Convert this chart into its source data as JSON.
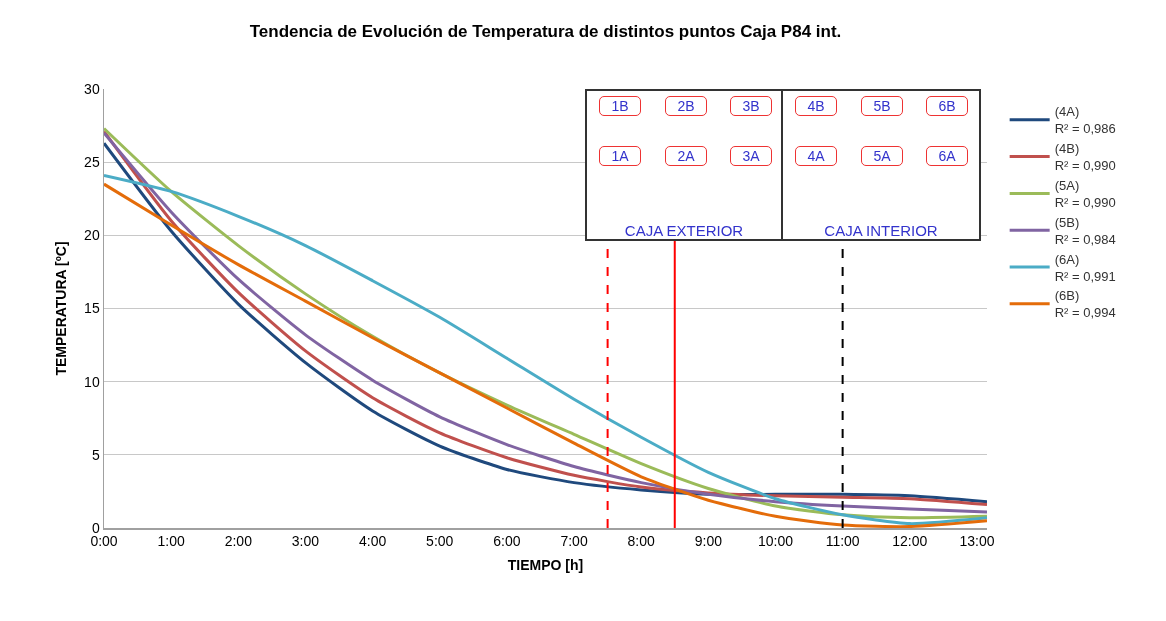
{
  "chart_data": [
    {
      "type": "line",
      "title": "Tendencia de Evolución de Temperatura de distintos puntos Caja P84 int.",
      "xlabel": "TIEMPO [h]",
      "ylabel": "TEMPERATURA [ºC]",
      "x": [
        0,
        1,
        2,
        3,
        4,
        5,
        6,
        7,
        8,
        9,
        10,
        11,
        12,
        13.15
      ],
      "series": [
        {
          "name": "(4A)",
          "color": "#1f497d",
          "values": [
            26.3,
            20.3,
            15.3,
            11.3,
            8.0,
            5.6,
            4.0,
            3.1,
            2.6,
            2.3,
            2.3,
            2.3,
            2.2,
            1.8
          ]
        },
        {
          "name": "(4B)",
          "color": "#c0504d",
          "values": [
            27.1,
            21.0,
            16.1,
            12.1,
            8.9,
            6.5,
            4.8,
            3.6,
            2.8,
            2.4,
            2.2,
            2.1,
            2.0,
            1.6
          ]
        },
        {
          "name": "(5A)",
          "color": "#9bbb59",
          "values": [
            27.3,
            23.0,
            19.3,
            16.0,
            13.1,
            10.6,
            8.4,
            6.4,
            4.4,
            2.7,
            1.5,
            0.9,
            0.7,
            0.8
          ]
        },
        {
          "name": "(5B)",
          "color": "#8064a2",
          "values": [
            27.0,
            21.6,
            17.0,
            13.2,
            10.1,
            7.6,
            5.7,
            4.2,
            3.1,
            2.3,
            1.8,
            1.5,
            1.3,
            1.1
          ]
        },
        {
          "name": "(6A)",
          "color": "#4bacc6",
          "values": [
            24.1,
            23.0,
            21.3,
            19.3,
            16.9,
            14.4,
            11.6,
            8.8,
            6.2,
            3.8,
            2.0,
            0.9,
            0.3,
            0.7
          ]
        },
        {
          "name": "(6B)",
          "color": "#e46c0a",
          "values": [
            23.5,
            20.7,
            18.0,
            15.5,
            13.0,
            10.6,
            8.2,
            5.8,
            3.5,
            1.9,
            0.8,
            0.2,
            0.1,
            0.5
          ]
        }
      ],
      "annotations": [
        "R² = 0,986",
        "R² = 0,990",
        "R² = 0,990",
        "R² = 0,984",
        "R² = 0,991",
        "R² = 0,994",
        "1B",
        "2B",
        "3B",
        "4B",
        "5B",
        "6B",
        "1A",
        "2A",
        "3A",
        "4A",
        "5A",
        "6A",
        "CAJA EXTERIOR",
        "CAJA INTERIOR"
      ],
      "xlim": [
        0,
        13.15
      ],
      "xticks": [
        {
          "value": 0,
          "label": "0:00"
        },
        {
          "value": 1,
          "label": "1:00"
        },
        {
          "value": 2,
          "label": "2:00"
        },
        {
          "value": 3,
          "label": "3:00"
        },
        {
          "value": 4,
          "label": "4:00"
        },
        {
          "value": 5,
          "label": "5:00"
        },
        {
          "value": 6,
          "label": "6:00"
        },
        {
          "value": 7,
          "label": "7:00"
        },
        {
          "value": 8,
          "label": "8:00"
        },
        {
          "value": 9,
          "label": "9:00"
        },
        {
          "value": 10,
          "label": "10:00"
        },
        {
          "value": 11,
          "label": "11:00"
        },
        {
          "value": 12,
          "label": "12:00"
        },
        {
          "value": 13,
          "label": "13:00"
        }
      ],
      "ylim": [
        0,
        30
      ],
      "yticks": [
        0,
        5,
        10,
        15,
        20,
        25,
        30
      ],
      "ref_lines": [
        {
          "axis": "x",
          "value": 7.5,
          "color": "#ff0000",
          "line_style": "dashed"
        },
        {
          "axis": "x",
          "value": 8.5,
          "color": "#ff0000",
          "line_style": "solid"
        },
        {
          "axis": "x",
          "value": 11,
          "color": "#000000",
          "line_style": "dashed"
        }
      ],
      "grid": "y",
      "legend": "right",
      "marker": "none",
      "line_style": "solid"
    }
  ]
}
